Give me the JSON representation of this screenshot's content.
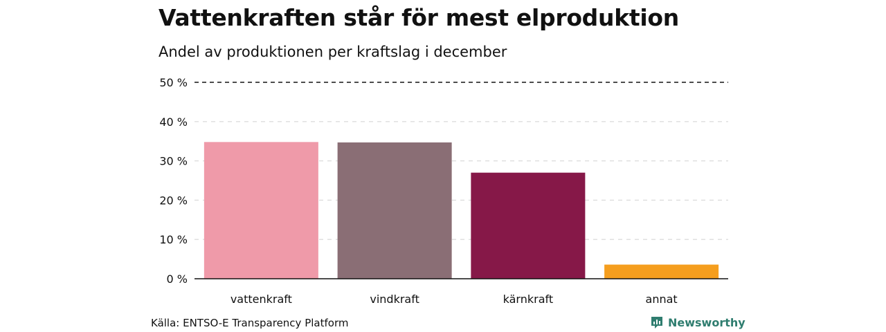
{
  "chart_data": {
    "type": "bar",
    "title": "Vattenkraften står för mest elproduktion",
    "subtitle": "Andel av produktionen per kraftslag i december",
    "categories": [
      "vattenkraft",
      "vindkraft",
      "kärnkraft",
      "annat"
    ],
    "values": [
      34.8,
      34.7,
      27.0,
      3.6
    ],
    "colors": [
      "#ef9aa9",
      "#8a6e75",
      "#861848",
      "#f59e1e"
    ],
    "ylim": [
      0,
      50
    ],
    "yticks": [
      0,
      10,
      20,
      30,
      40,
      50
    ],
    "ytick_labels": [
      "0 %",
      "10 %",
      "20 %",
      "30 %",
      "40 %",
      "50 %"
    ],
    "grid": true,
    "xlabel": "",
    "ylabel": ""
  },
  "footer": {
    "source": "Källa: ENTSO-E Transparency Platform",
    "brand": "Newsworthy",
    "brand_color": "#2f7d6f",
    "brand_icon": "bar-chart-icon"
  }
}
